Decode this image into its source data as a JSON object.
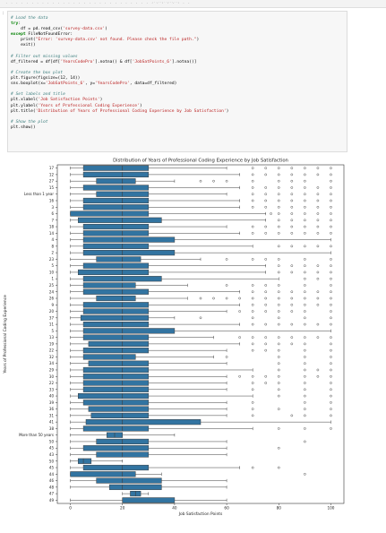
{
  "topbar": {
    "left": "· · · · · · · · · · · · · · · · · · · · · · · · · · · · · · · · · · · ·",
    "center": "· · · · · · · · · · · · · ·"
  },
  "cell": {
    "prompt": ":",
    "lines": [
      [
        {
          "t": "c",
          "v": "# Load the data"
        }
      ],
      [
        {
          "t": "k",
          "v": "try"
        },
        {
          "t": "n",
          "v": ":"
        }
      ],
      [
        {
          "t": "n",
          "v": "    df = pd.read_csv("
        },
        {
          "t": "s",
          "v": "'survey-data.csv'"
        },
        {
          "t": "n",
          "v": ")"
        }
      ],
      [
        {
          "t": "k",
          "v": "except"
        },
        {
          "t": "n",
          "v": " FileNotFoundError:"
        }
      ],
      [
        {
          "t": "n",
          "v": "    print("
        },
        {
          "t": "s",
          "v": "\"Error: 'survey-data.csv' not found. Please check the file path.\""
        },
        {
          "t": "n",
          "v": ")"
        }
      ],
      [
        {
          "t": "n",
          "v": "    exit()"
        }
      ],
      [
        {
          "t": "n",
          "v": ""
        }
      ],
      [
        {
          "t": "c",
          "v": "# Filter out missing values"
        }
      ],
      [
        {
          "t": "n",
          "v": "df_filtered = df[df["
        },
        {
          "t": "s",
          "v": "'YearsCodePro'"
        },
        {
          "t": "n",
          "v": "].notna() & df["
        },
        {
          "t": "s",
          "v": "'JobSatPoints_6'"
        },
        {
          "t": "n",
          "v": "].notna()]"
        }
      ],
      [
        {
          "t": "n",
          "v": ""
        }
      ],
      [
        {
          "t": "c",
          "v": "# Create the box plot"
        }
      ],
      [
        {
          "t": "n",
          "v": "plt.figure(figsize=(12, 14))"
        }
      ],
      [
        {
          "t": "n",
          "v": "sns.boxplot(x="
        },
        {
          "t": "s",
          "v": "'JobSatPoints_6'"
        },
        {
          "t": "n",
          "v": ", y="
        },
        {
          "t": "s",
          "v": "'YearsCodePro'"
        },
        {
          "t": "n",
          "v": ", data=df_filtered)"
        }
      ],
      [
        {
          "t": "n",
          "v": ""
        }
      ],
      [
        {
          "t": "c",
          "v": "# Set labels and title"
        }
      ],
      [
        {
          "t": "n",
          "v": "plt.xlabel("
        },
        {
          "t": "s",
          "v": "'Job Satisfaction Points'"
        },
        {
          "t": "n",
          "v": ")"
        }
      ],
      [
        {
          "t": "n",
          "v": "plt.ylabel("
        },
        {
          "t": "s",
          "v": "'Years of Professional Coding Experience'"
        },
        {
          "t": "n",
          "v": ")"
        }
      ],
      [
        {
          "t": "n",
          "v": "plt.title("
        },
        {
          "t": "s",
          "v": "'Distribution of Years of Professional Coding Experience by Job Satisfaction'"
        },
        {
          "t": "n",
          "v": ")"
        }
      ],
      [
        {
          "t": "n",
          "v": ""
        }
      ],
      [
        {
          "t": "c",
          "v": "# Show the plot"
        }
      ],
      [
        {
          "t": "n",
          "v": "plt.show()"
        }
      ]
    ]
  },
  "chart_data": {
    "type": "box",
    "title": "Distribution of Years of Professional Coding Experience by Job Satisfaction",
    "xlabel": "Job Satisfaction Points",
    "ylabel": "Years of Professional Coding Experience",
    "xlim": [
      -5,
      105
    ],
    "xticks": [
      0,
      20,
      40,
      60,
      80,
      100
    ],
    "box_color": "#3274a1",
    "categories": [
      {
        "label": "17",
        "q1": 5,
        "med": 20,
        "q3": 30,
        "wlo": 0,
        "whi": 60,
        "out": [
          70,
          75,
          80,
          85,
          90,
          95,
          100
        ]
      },
      {
        "label": "12",
        "q1": 5,
        "med": 20,
        "q3": 30,
        "wlo": 0,
        "whi": 65,
        "out": [
          70,
          75,
          80,
          85,
          90,
          95,
          100
        ]
      },
      {
        "label": "27",
        "q1": 10,
        "med": 20,
        "q3": 25,
        "wlo": 0,
        "whi": 40,
        "out": [
          50,
          55,
          60,
          70,
          80,
          85,
          90,
          100
        ]
      },
      {
        "label": "15",
        "q1": 5,
        "med": 20,
        "q3": 30,
        "wlo": 0,
        "whi": 65,
        "out": [
          70,
          75,
          80,
          85,
          90,
          95,
          100
        ]
      },
      {
        "label": "Less than 1 year",
        "q1": 10,
        "med": 20,
        "q3": 30,
        "wlo": 0,
        "whi": 60,
        "out": [
          70,
          75,
          80,
          85,
          90,
          95,
          100
        ]
      },
      {
        "label": "16",
        "q1": 5,
        "med": 20,
        "q3": 30,
        "wlo": 0,
        "whi": 65,
        "out": [
          70,
          75,
          80,
          85,
          90,
          95,
          100
        ]
      },
      {
        "label": "3",
        "q1": 5,
        "med": 20,
        "q3": 30,
        "wlo": 0,
        "whi": 65,
        "out": [
          70,
          75,
          80,
          85,
          90,
          95,
          100
        ]
      },
      {
        "label": "6",
        "q1": 0,
        "med": 20,
        "q3": 30,
        "wlo": 0,
        "whi": 75,
        "out": [
          77,
          80,
          85,
          90,
          95,
          100
        ]
      },
      {
        "label": "7",
        "q1": 3,
        "med": 20,
        "q3": 35,
        "wlo": 0,
        "whi": 75,
        "out": [
          80,
          85,
          90,
          95,
          100
        ]
      },
      {
        "label": "18",
        "q1": 5,
        "med": 20,
        "q3": 30,
        "wlo": 0,
        "whi": 60,
        "out": [
          70,
          75,
          80,
          85,
          90,
          95,
          100
        ]
      },
      {
        "label": "14",
        "q1": 5,
        "med": 20,
        "q3": 30,
        "wlo": 0,
        "whi": 65,
        "out": [
          70,
          75,
          80,
          85,
          90,
          95,
          100
        ]
      },
      {
        "label": "4",
        "q1": 5,
        "med": 20,
        "q3": 40,
        "wlo": 0,
        "whi": 100,
        "out": []
      },
      {
        "label": "8",
        "q1": 5,
        "med": 20,
        "q3": 30,
        "wlo": 0,
        "whi": 70,
        "out": [
          80,
          85,
          90,
          95,
          100
        ]
      },
      {
        "label": "2",
        "q1": 5,
        "med": 20,
        "q3": 40,
        "wlo": 0,
        "whi": 100,
        "out": []
      },
      {
        "label": "23",
        "q1": 10,
        "med": 20,
        "q3": 27,
        "wlo": 0,
        "whi": 50,
        "out": [
          60,
          70,
          75,
          80,
          90,
          100
        ]
      },
      {
        "label": "5",
        "q1": 5,
        "med": 20,
        "q3": 30,
        "wlo": 0,
        "whi": 75,
        "out": [
          80,
          85,
          90,
          95,
          100
        ]
      },
      {
        "label": "10",
        "q1": 3,
        "med": 20,
        "q3": 30,
        "wlo": 0,
        "whi": 75,
        "out": [
          80,
          85,
          90,
          95,
          100
        ]
      },
      {
        "label": "1",
        "q1": 5,
        "med": 20,
        "q3": 35,
        "wlo": 0,
        "whi": 80,
        "out": [
          90,
          95,
          100
        ]
      },
      {
        "label": "25",
        "q1": 5,
        "med": 20,
        "q3": 25,
        "wlo": 0,
        "whi": 45,
        "out": [
          60,
          70,
          75,
          80,
          90,
          100
        ]
      },
      {
        "label": "24",
        "q1": 5,
        "med": 20,
        "q3": 30,
        "wlo": 0,
        "whi": 65,
        "out": [
          70,
          75,
          80,
          85,
          90,
          95,
          100
        ]
      },
      {
        "label": "26",
        "q1": 10,
        "med": 20,
        "q3": 25,
        "wlo": 0,
        "whi": 45,
        "out": [
          50,
          55,
          60,
          65,
          70,
          75,
          80,
          85,
          90,
          95,
          100
        ]
      },
      {
        "label": "9",
        "q1": 5,
        "med": 20,
        "q3": 30,
        "wlo": 0,
        "whi": 65,
        "out": [
          70,
          75,
          80,
          85,
          90,
          95,
          100
        ]
      },
      {
        "label": "20",
        "q1": 5,
        "med": 20,
        "q3": 30,
        "wlo": 0,
        "whi": 60,
        "out": [
          65,
          70,
          75,
          80,
          85,
          90,
          100
        ]
      },
      {
        "label": "37",
        "q1": 4,
        "med": 20,
        "q3": 30,
        "wlo": 0,
        "whi": 40,
        "out": [
          50,
          70,
          80,
          90,
          100
        ]
      },
      {
        "label": "11",
        "q1": 5,
        "med": 20,
        "q3": 30,
        "wlo": 0,
        "whi": 65,
        "out": [
          70,
          75,
          80,
          85,
          90,
          95,
          100
        ]
      },
      {
        "label": "5",
        "q1": 5,
        "med": 20,
        "q3": 40,
        "wlo": 0,
        "whi": 100,
        "out": []
      },
      {
        "label": "13",
        "q1": 5,
        "med": 20,
        "q3": 30,
        "wlo": 0,
        "whi": 55,
        "out": [
          65,
          70,
          75,
          80,
          85,
          90,
          95,
          100
        ]
      },
      {
        "label": "19",
        "q1": 7,
        "med": 20,
        "q3": 30,
        "wlo": 0,
        "whi": 65,
        "out": [
          70,
          75,
          80,
          85,
          90,
          100
        ]
      },
      {
        "label": "22",
        "q1": 5,
        "med": 20,
        "q3": 30,
        "wlo": 0,
        "whi": 60,
        "out": [
          70,
          75,
          80,
          90,
          100
        ]
      },
      {
        "label": "32",
        "q1": 5,
        "med": 20,
        "q3": 25,
        "wlo": 0,
        "whi": 55,
        "out": [
          60,
          80,
          90,
          100
        ]
      },
      {
        "label": "34",
        "q1": 7,
        "med": 20,
        "q3": 30,
        "wlo": 0,
        "whi": 60,
        "out": [
          80,
          90,
          100
        ]
      },
      {
        "label": "29",
        "q1": 5,
        "med": 20,
        "q3": 30,
        "wlo": 0,
        "whi": 70,
        "out": [
          80,
          90,
          95,
          100
        ]
      },
      {
        "label": "30",
        "q1": 5,
        "med": 20,
        "q3": 30,
        "wlo": 0,
        "whi": 60,
        "out": [
          65,
          70,
          75,
          80,
          90,
          95,
          100
        ]
      },
      {
        "label": "22",
        "q1": 5,
        "med": 20,
        "q3": 30,
        "wlo": 0,
        "whi": 60,
        "out": [
          70,
          75,
          80,
          90,
          100
        ]
      },
      {
        "label": "33",
        "q1": 5,
        "med": 20,
        "q3": 30,
        "wlo": 0,
        "whi": 60,
        "out": [
          70,
          80,
          90,
          100
        ]
      },
      {
        "label": "40",
        "q1": 3,
        "med": 20,
        "q3": 30,
        "wlo": 0,
        "whi": 70,
        "out": [
          80,
          90,
          100
        ]
      },
      {
        "label": "39",
        "q1": 5,
        "med": 20,
        "q3": 30,
        "wlo": 0,
        "whi": 60,
        "out": [
          70,
          90,
          100
        ]
      },
      {
        "label": "36",
        "q1": 7,
        "med": 20,
        "q3": 30,
        "wlo": 0,
        "whi": 60,
        "out": [
          70,
          80,
          90,
          100
        ]
      },
      {
        "label": "31",
        "q1": 8,
        "med": 20,
        "q3": 30,
        "wlo": 0,
        "whi": 60,
        "out": [
          70,
          85,
          90,
          100
        ]
      },
      {
        "label": "41",
        "q1": 6,
        "med": 20,
        "q3": 50,
        "wlo": 0,
        "whi": 100,
        "out": []
      },
      {
        "label": "38",
        "q1": 5,
        "med": 20,
        "q3": 30,
        "wlo": 0,
        "whi": 70,
        "out": [
          80,
          90,
          100
        ]
      },
      {
        "label": "More than 50 years",
        "q1": 14,
        "med": 17,
        "q3": 20,
        "wlo": 0,
        "whi": 40,
        "out": []
      },
      {
        "label": "50",
        "q1": 10,
        "med": 20,
        "q3": 30,
        "wlo": 0,
        "whi": 60,
        "out": [
          90
        ]
      },
      {
        "label": "45",
        "q1": 5,
        "med": 20,
        "q3": 30,
        "wlo": 0,
        "whi": 60,
        "out": [
          80
        ]
      },
      {
        "label": "43",
        "q1": 10,
        "med": 20,
        "q3": 30,
        "wlo": 0,
        "whi": 60,
        "out": []
      },
      {
        "label": "50",
        "q1": 3,
        "med": 5,
        "q3": 8,
        "wlo": 0,
        "whi": 20,
        "out": []
      },
      {
        "label": "45",
        "q1": 5,
        "med": 20,
        "q3": 30,
        "wlo": 0,
        "whi": 65,
        "out": [
          70,
          80
        ]
      },
      {
        "label": "44",
        "q1": 0,
        "med": 20,
        "q3": 25,
        "wlo": 0,
        "whi": 35,
        "out": [
          90
        ]
      },
      {
        "label": "46",
        "q1": 10,
        "med": 20,
        "q3": 35,
        "wlo": 0,
        "whi": 60,
        "out": []
      },
      {
        "label": "48",
        "q1": 15,
        "med": 20,
        "q3": 35,
        "wlo": 0,
        "whi": 60,
        "out": []
      },
      {
        "label": "47",
        "q1": 23,
        "med": 25,
        "q3": 27,
        "wlo": 20,
        "whi": 30,
        "out": []
      },
      {
        "label": "49",
        "q1": 20,
        "med": 20,
        "q3": 40,
        "wlo": 0,
        "whi": 60,
        "out": []
      }
    ]
  }
}
